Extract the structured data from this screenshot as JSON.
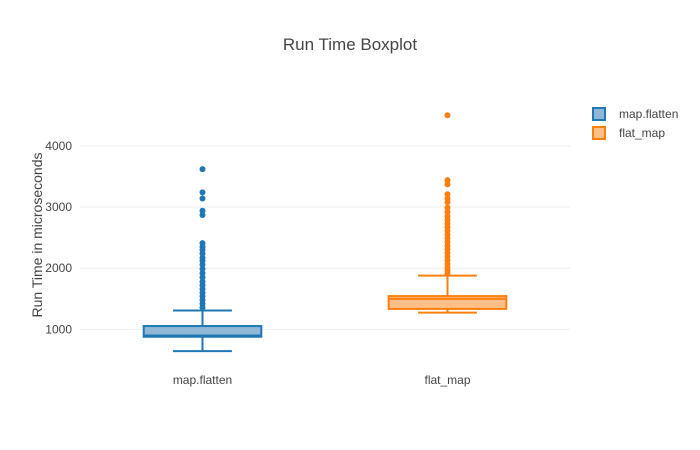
{
  "chart_data": {
    "type": "box",
    "title": "Run Time Boxplot",
    "xlabel": "",
    "ylabel": "Run Time in microseconds",
    "ylim": [
      500,
      4750
    ],
    "yticks": [
      1000,
      2000,
      3000,
      4000
    ],
    "grid": true,
    "legend_position": "top-right",
    "categories": [
      "map.flatten",
      "flat_map"
    ],
    "series": [
      {
        "name": "map.flatten",
        "color": "#1f77b4",
        "fill": "#90b7d6",
        "lower_whisker": 645,
        "q1": 880,
        "median": 900,
        "q3": 1055,
        "upper_whisker": 1310,
        "outliers": [
          1360,
          1420,
          1480,
          1540,
          1600,
          1660,
          1720,
          1780,
          1850,
          1920,
          1990,
          2060,
          2120,
          2170,
          2240,
          2300,
          2350,
          2410,
          2870,
          2940,
          3140,
          3240,
          3620
        ]
      },
      {
        "name": "flat_map",
        "color": "#ff7f0e",
        "fill": "#ffbf86",
        "lower_whisker": 1275,
        "q1": 1335,
        "median": 1500,
        "q3": 1545,
        "upper_whisker": 1880,
        "outliers": [
          1910,
          1960,
          2010,
          2070,
          2130,
          2190,
          2250,
          2310,
          2370,
          2430,
          2490,
          2550,
          2610,
          2670,
          2730,
          2790,
          2850,
          2920,
          2990,
          3080,
          3140,
          3210,
          3370,
          3440,
          4500
        ]
      }
    ]
  }
}
